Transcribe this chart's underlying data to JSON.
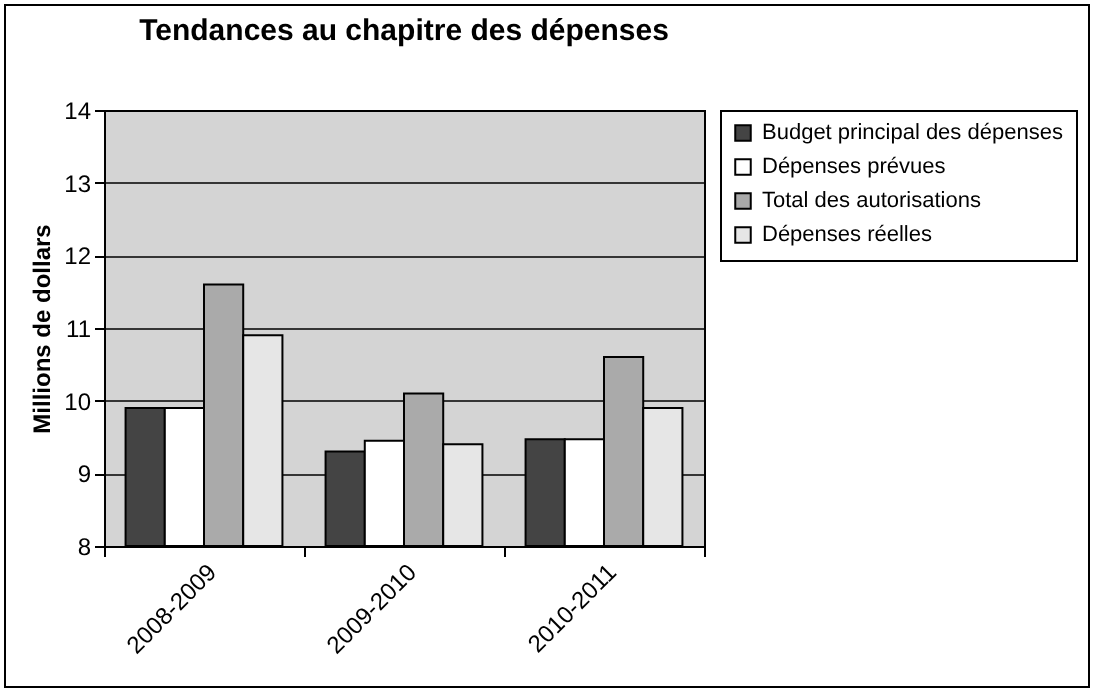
{
  "chart_data": {
    "type": "bar",
    "title": "Tendances au chapitre des dépenses",
    "ylabel": "Millions de dollars",
    "categories": [
      "2008-2009",
      "2009-2010",
      "2010-2011"
    ],
    "series": [
      {
        "name": "Budget principal des dépenses",
        "color": "#444444",
        "values": [
          9.9,
          9.3,
          9.47
        ]
      },
      {
        "name": "Dépenses prévues",
        "color": "#ffffff",
        "values": [
          9.9,
          9.45,
          9.47
        ]
      },
      {
        "name": "Total des autorisations",
        "color": "#aaaaaa",
        "values": [
          11.6,
          10.1,
          10.6
        ]
      },
      {
        "name": "Dépenses réelles",
        "color": "#e6e6e6",
        "values": [
          10.9,
          9.4,
          9.9
        ]
      }
    ],
    "ylim": [
      8,
      14
    ],
    "yticks": [
      8,
      9,
      10,
      11,
      12,
      13,
      14
    ],
    "grid": "y",
    "legend": "right"
  }
}
